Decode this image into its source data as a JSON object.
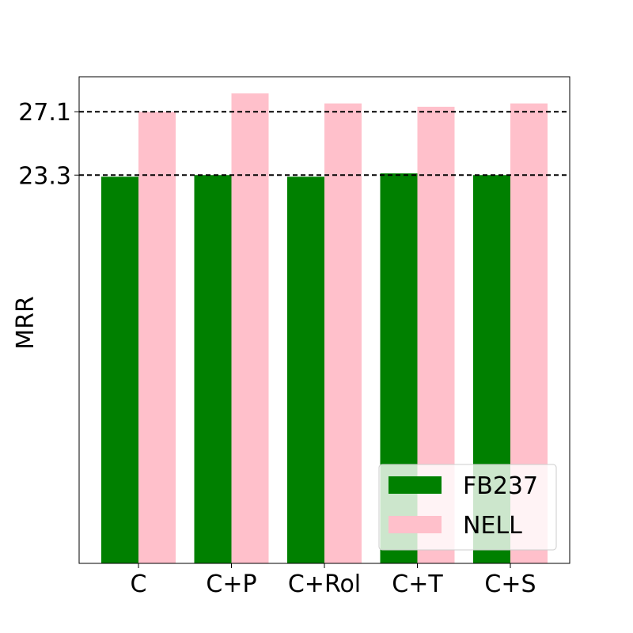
{
  "chart_data": {
    "type": "bar",
    "categories": [
      "C",
      "C+P",
      "C+Rol",
      "C+T",
      "C+S"
    ],
    "series": [
      {
        "name": "FB237",
        "color": "#008000",
        "values": [
          23.2,
          23.3,
          23.2,
          23.4,
          23.3
        ]
      },
      {
        "name": "NELL",
        "color": "#ffc0cb",
        "values": [
          27.1,
          28.2,
          27.6,
          27.4,
          27.6
        ]
      }
    ],
    "ylabel": "MRR",
    "yticks": [
      23.3,
      27.1
    ],
    "ytick_labels": [
      "23.3",
      "27.1"
    ],
    "reference_lines": [
      23.3,
      27.1
    ],
    "ylim": [
      0,
      29.2
    ],
    "legend_position": "lower-right",
    "grid": false
  }
}
